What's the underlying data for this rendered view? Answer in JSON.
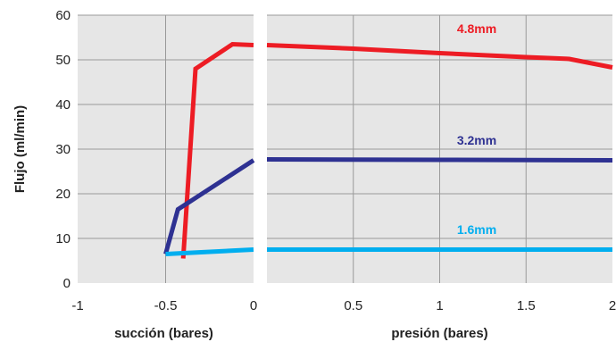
{
  "chart_data": {
    "type": "line",
    "ylabel": "Flujo (ml/min)",
    "ylim": [
      0,
      60
    ],
    "y_ticks": [
      "0",
      "10",
      "20",
      "30",
      "40",
      "50",
      "60"
    ],
    "grid": true,
    "panels": [
      {
        "id": "left",
        "xlabel": "succión (bares)",
        "xlim": [
          -1,
          0
        ],
        "x_ticks": [
          {
            "value": -1,
            "label": "-1"
          },
          {
            "value": -0.5,
            "label": "-0.5"
          },
          {
            "value": 0,
            "label": "0"
          }
        ],
        "series": [
          {
            "name": "4.8mm",
            "color": "#ed1c24",
            "points": [
              [
                -0.4,
                5.5
              ],
              [
                -0.33,
                48
              ],
              [
                -0.12,
                53.5
              ],
              [
                0,
                53.3
              ]
            ]
          },
          {
            "name": "3.2mm",
            "color": "#2e3192",
            "points": [
              [
                -0.5,
                6.5
              ],
              [
                -0.43,
                16.5
              ],
              [
                0,
                27.5
              ]
            ]
          },
          {
            "name": "1.6mm",
            "color": "#00aeef",
            "points": [
              [
                -0.5,
                6.5
              ],
              [
                0,
                7.5
              ]
            ]
          }
        ]
      },
      {
        "id": "right",
        "xlabel": "presión (bares)",
        "xlim": [
          0,
          2
        ],
        "x_ticks": [
          {
            "value": 0.5,
            "label": "0.5"
          },
          {
            "value": 1,
            "label": "1"
          },
          {
            "value": 1.5,
            "label": "1.5"
          },
          {
            "value": 2,
            "label": "2"
          }
        ],
        "series": [
          {
            "name": "4.8mm",
            "color": "#ed1c24",
            "label_at": [
              1.1,
              56
            ],
            "points": [
              [
                0,
                53.3
              ],
              [
                0.5,
                52.5
              ],
              [
                1,
                51.5
              ],
              [
                1.5,
                50.6
              ],
              [
                1.75,
                50.2
              ],
              [
                2,
                48.3
              ]
            ]
          },
          {
            "name": "3.2mm",
            "color": "#2e3192",
            "label_at": [
              1.1,
              31
            ],
            "points": [
              [
                0,
                27.7
              ],
              [
                1,
                27.6
              ],
              [
                2,
                27.5
              ]
            ]
          },
          {
            "name": "1.6mm",
            "color": "#00aeef",
            "label_at": [
              1.1,
              11
            ],
            "points": [
              [
                0,
                7.5
              ],
              [
                2,
                7.5
              ]
            ]
          }
        ]
      }
    ]
  }
}
